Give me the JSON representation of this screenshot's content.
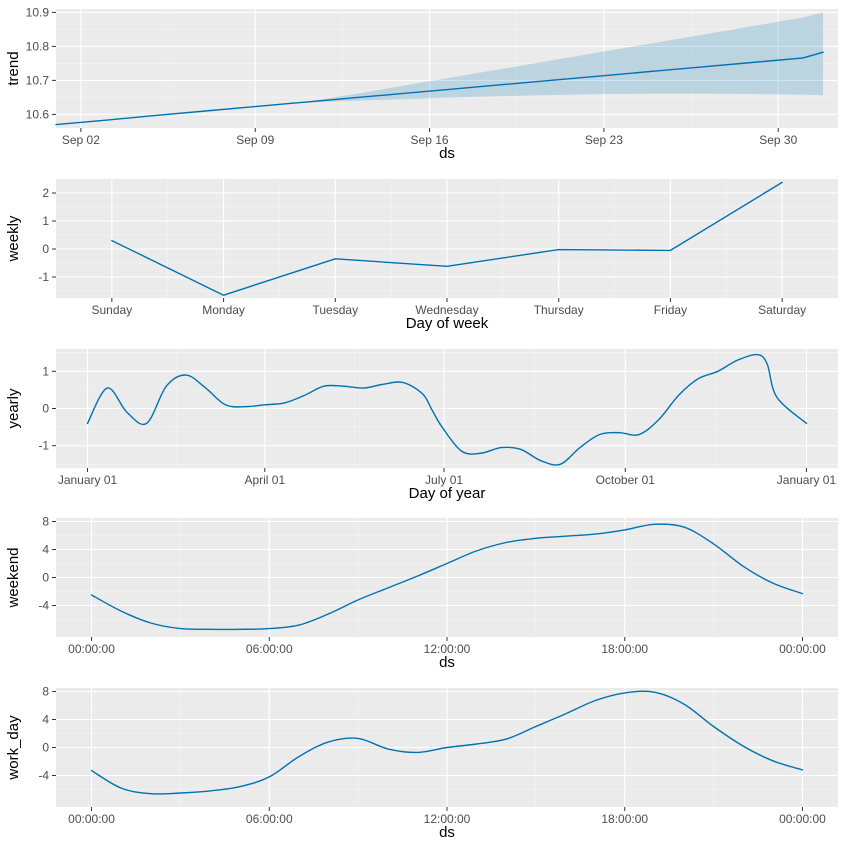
{
  "colors": {
    "line": "#0072B2",
    "band": "#0072B2",
    "panel": "#EBEBEB",
    "grid": "#FFFFFF"
  },
  "chart_data": [
    {
      "id": "trend",
      "type": "line",
      "xlabel": "ds",
      "ylabel": "trend",
      "xlim": [
        0,
        31.4
      ],
      "ylim": [
        10.56,
        10.91
      ],
      "x_ticks": [
        {
          "label": "Sep 02",
          "value": 1
        },
        {
          "label": "Sep 09",
          "value": 8
        },
        {
          "label": "Sep 16",
          "value": 15
        },
        {
          "label": "Sep 23",
          "value": 22
        },
        {
          "label": "Sep 30",
          "value": 29
        }
      ],
      "y_ticks": [
        {
          "label": "10.6",
          "value": 10.6
        },
        {
          "label": "10.7",
          "value": 10.7
        },
        {
          "label": "10.8",
          "value": 10.8
        },
        {
          "label": "10.9",
          "value": 10.9
        }
      ],
      "x": [
        0.0,
        2,
        4,
        6,
        8,
        9.5,
        10,
        12,
        14,
        16,
        18,
        20,
        22,
        24,
        26,
        28,
        30,
        30.8
      ],
      "y": [
        10.57,
        10.583,
        10.597,
        10.61,
        10.623,
        10.633,
        10.636,
        10.649,
        10.662,
        10.675,
        10.688,
        10.701,
        10.714,
        10.727,
        10.74,
        10.753,
        10.766,
        10.783
      ],
      "band_x": [
        9.5,
        10,
        12,
        14,
        16,
        18,
        20,
        22,
        24,
        26,
        28,
        30,
        30.8
      ],
      "band_upper": [
        10.633,
        10.637,
        10.66,
        10.685,
        10.71,
        10.735,
        10.76,
        10.785,
        10.81,
        10.835,
        10.86,
        10.885,
        10.9
      ],
      "band_lower": [
        10.633,
        10.635,
        10.64,
        10.645,
        10.65,
        10.654,
        10.657,
        10.66,
        10.661,
        10.661,
        10.66,
        10.658,
        10.656
      ]
    },
    {
      "id": "weekly",
      "type": "line",
      "xlabel": "Day of week",
      "ylabel": "weekly",
      "xlim": [
        -0.5,
        6.5
      ],
      "ylim": [
        -1.75,
        2.5
      ],
      "x_ticks": [
        {
          "label": "Sunday",
          "value": 0
        },
        {
          "label": "Monday",
          "value": 1
        },
        {
          "label": "Tuesday",
          "value": 2
        },
        {
          "label": "Wednesday",
          "value": 3
        },
        {
          "label": "Thursday",
          "value": 4
        },
        {
          "label": "Friday",
          "value": 5
        },
        {
          "label": "Saturday",
          "value": 6
        }
      ],
      "y_ticks": [
        {
          "label": "2",
          "value": 2
        },
        {
          "label": "1",
          "value": 1
        },
        {
          "label": "0",
          "value": 0
        },
        {
          "label": "-1",
          "value": -1
        }
      ],
      "x": [
        0,
        1,
        2,
        3,
        4,
        5,
        6
      ],
      "y": [
        0.3,
        -1.65,
        -0.35,
        -0.62,
        -0.02,
        -0.05,
        2.38
      ]
    },
    {
      "id": "yearly",
      "type": "line",
      "xlabel": "Day of year",
      "ylabel": "yearly",
      "xlim": [
        -16,
        381
      ],
      "ylim": [
        -1.6,
        1.6
      ],
      "x_ticks": [
        {
          "label": "January 01",
          "value": 0
        },
        {
          "label": "April 01",
          "value": 90
        },
        {
          "label": "July 01",
          "value": 181
        },
        {
          "label": "October 01",
          "value": 273
        },
        {
          "label": "January 01",
          "value": 365
        }
      ],
      "y_ticks": [
        {
          "label": "1",
          "value": 1
        },
        {
          "label": "0",
          "value": 0
        },
        {
          "label": "-1",
          "value": -1
        }
      ],
      "x": [
        0,
        10,
        20,
        30,
        40,
        50,
        60,
        70,
        80,
        90,
        100,
        110,
        120,
        130,
        140,
        150,
        160,
        170,
        175,
        180,
        190,
        200,
        210,
        220,
        230,
        240,
        250,
        260,
        270,
        280,
        290,
        300,
        310,
        320,
        330,
        340,
        345,
        350,
        365
      ],
      "y": [
        -0.4,
        0.55,
        -0.1,
        -0.4,
        0.6,
        0.9,
        0.55,
        0.1,
        0.05,
        0.1,
        0.15,
        0.35,
        0.6,
        0.6,
        0.55,
        0.65,
        0.7,
        0.4,
        -0.05,
        -0.5,
        -1.15,
        -1.2,
        -1.05,
        -1.1,
        -1.4,
        -1.5,
        -1.05,
        -0.7,
        -0.65,
        -0.7,
        -0.3,
        0.35,
        0.8,
        1.0,
        1.3,
        1.45,
        1.2,
        0.3,
        -0.4
      ]
    },
    {
      "id": "weekend",
      "type": "line",
      "xlabel": "ds",
      "ylabel": "weekend",
      "xlim": [
        -1.2,
        25.2
      ],
      "ylim": [
        -8.5,
        8.5
      ],
      "x_ticks": [
        {
          "label": "00:00:00",
          "value": 0
        },
        {
          "label": "06:00:00",
          "value": 6
        },
        {
          "label": "12:00:00",
          "value": 12
        },
        {
          "label": "18:00:00",
          "value": 18
        },
        {
          "label": "00:00:00",
          "value": 24
        }
      ],
      "y_ticks": [
        {
          "label": "8",
          "value": 8
        },
        {
          "label": "4",
          "value": 4
        },
        {
          "label": "0",
          "value": 0
        },
        {
          "label": "-4",
          "value": -4
        }
      ],
      "x": [
        0,
        1,
        2,
        3,
        4,
        5,
        6,
        7,
        8,
        9,
        10,
        11,
        12,
        13,
        14,
        15,
        16,
        17,
        18,
        19,
        20,
        21,
        22,
        23,
        24
      ],
      "y": [
        -2.5,
        -4.8,
        -6.5,
        -7.3,
        -7.4,
        -7.4,
        -7.3,
        -6.8,
        -5.2,
        -3.2,
        -1.5,
        0.2,
        2.0,
        3.8,
        5.0,
        5.6,
        5.9,
        6.2,
        6.8,
        7.6,
        7.2,
        4.8,
        1.6,
        -0.8,
        -2.3
      ]
    },
    {
      "id": "work_day",
      "type": "line",
      "xlabel": "ds",
      "ylabel": "work_day",
      "xlim": [
        -1.2,
        25.2
      ],
      "ylim": [
        -8.5,
        8.5
      ],
      "x_ticks": [
        {
          "label": "00:00:00",
          "value": 0
        },
        {
          "label": "06:00:00",
          "value": 6
        },
        {
          "label": "12:00:00",
          "value": 12
        },
        {
          "label": "18:00:00",
          "value": 18
        },
        {
          "label": "00:00:00",
          "value": 24
        }
      ],
      "y_ticks": [
        {
          "label": "8",
          "value": 8
        },
        {
          "label": "4",
          "value": 4
        },
        {
          "label": "0",
          "value": 0
        },
        {
          "label": "-4",
          "value": -4
        }
      ],
      "x": [
        0,
        1,
        2,
        3,
        4,
        5,
        6,
        7,
        8,
        9,
        10,
        11,
        12,
        13,
        14,
        15,
        16,
        17,
        18,
        19,
        20,
        21,
        22,
        23,
        24
      ],
      "y": [
        -3.3,
        -5.8,
        -6.6,
        -6.5,
        -6.2,
        -5.6,
        -4.2,
        -1.3,
        0.8,
        1.3,
        -0.2,
        -0.7,
        0.0,
        0.5,
        1.2,
        3.0,
        4.8,
        6.7,
        7.8,
        7.9,
        6.2,
        3.0,
        0.2,
        -1.9,
        -3.2
      ]
    }
  ]
}
